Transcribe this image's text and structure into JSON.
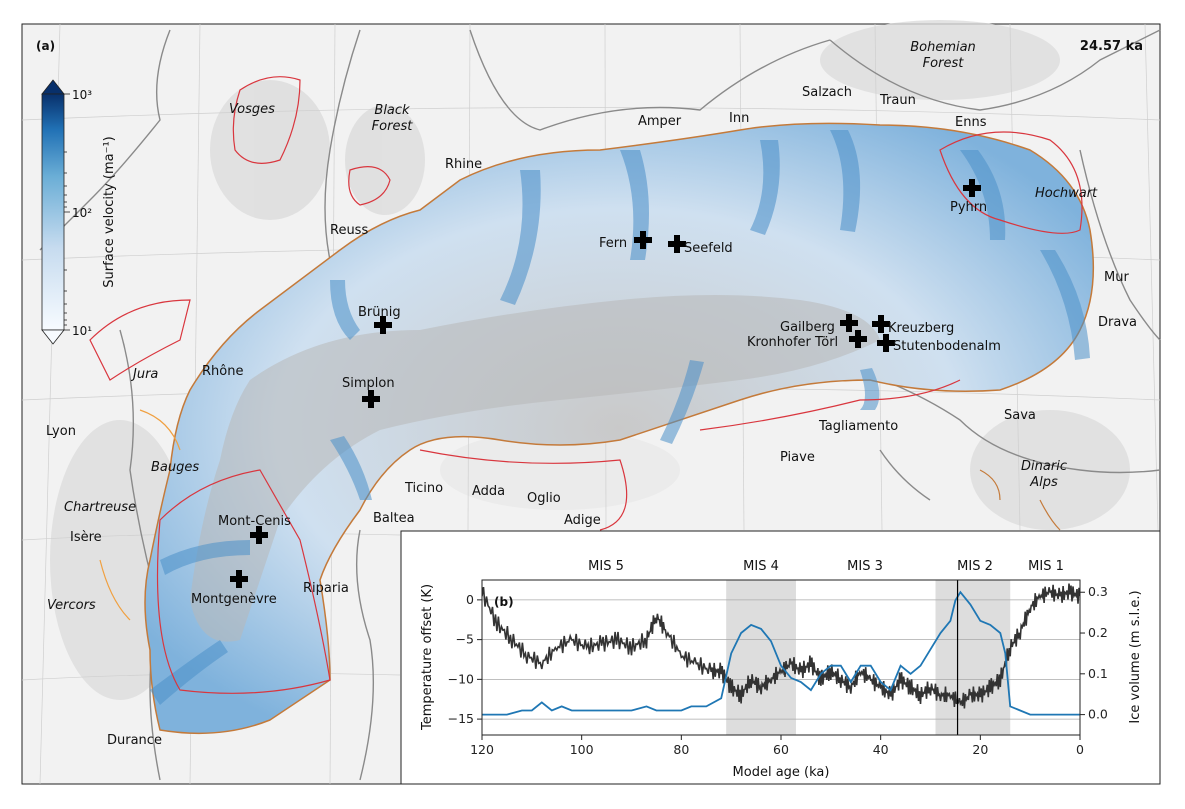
{
  "panel_a": {
    "label": "(a)",
    "time": "24.57 ka",
    "colorbar": {
      "title": "Surface velocity (ma⁻¹)",
      "tick_top": "10³",
      "tick_mid": "10²",
      "tick_bottom": "10¹"
    },
    "labels": {
      "bohemian_forest": "Bohemian Forest",
      "vosges": "Vosges",
      "black_forest": "Black Forest",
      "rhine": "Rhine",
      "amper": "Amper",
      "inn": "Inn",
      "salzach": "Salzach",
      "traun": "Traun",
      "enns": "Enns",
      "hochwart": "Hochwart",
      "pyhrn": "Pyhrn",
      "reuss": "Reuss",
      "fern": "Fern",
      "seefeld": "Seefeld",
      "mur": "Mur",
      "drava": "Drava",
      "brunig": "Brünig",
      "gailberg": "Gailberg",
      "kreuzberg": "Kreuzberg",
      "kronhofer": "Kronhofer Törl",
      "stutenboden": "Stutenbodenalm",
      "jura": "Jura",
      "rhone": "Rhône",
      "simplon": "Simplon",
      "sava": "Sava",
      "lyon": "Lyon",
      "tagliamento": "Tagliamento",
      "bauges": "Bauges",
      "piave": "Piave",
      "dinaric": "Dinaric Alps",
      "ticino": "Ticino",
      "adda": "Adda",
      "oglio": "Oglio",
      "chartreuse": "Chartreuse",
      "adige": "Adige",
      "baltea": "Baltea",
      "mont_cenis": "Mont-Cenis",
      "isere": "Isère",
      "riparia": "Riparia",
      "vercors": "Vercors",
      "montgenevre": "Montgenèvre",
      "durance": "Durance"
    }
  },
  "panel_b": {
    "label": "(b)",
    "mis_labels": [
      "MIS 5",
      "MIS 4",
      "MIS 3",
      "MIS 2",
      "MIS 1"
    ],
    "mis_shaded": [
      [
        71,
        57
      ],
      [
        29,
        14
      ]
    ],
    "xlabel": "Model age (ka)",
    "ylabel_left": "Temperature offset (K)",
    "ylabel_right": "Ice volume (m s.l.e.)",
    "xticks": [
      "120",
      "100",
      "80",
      "60",
      "40",
      "20",
      "0"
    ],
    "yticks_left": [
      "0",
      "−5",
      "−10",
      "−15"
    ],
    "yticks_right": [
      "0.3",
      "0.2",
      "0.1",
      "0.0"
    ],
    "current_time_ka": 24.57,
    "colors": {
      "temperature": "#333333",
      "ice_volume": "#1f77b4",
      "shade": "#dddddd"
    }
  },
  "chart_data": {
    "type": "line",
    "x_direction": "reversed",
    "xlim": [
      120,
      0
    ],
    "ylim_left": [
      -17,
      2.5
    ],
    "ylim_right": [
      -0.05,
      0.33
    ],
    "series": [
      {
        "name": "Temperature offset (K)",
        "axis": "left",
        "x": [
          120,
          117,
          114,
          111,
          108,
          105,
          102,
          99,
          96,
          93,
          90,
          87,
          85,
          83,
          80,
          77,
          74,
          72,
          70,
          68,
          66,
          64,
          62,
          60,
          58,
          56,
          54,
          52,
          50,
          48,
          46,
          44,
          42,
          40,
          38,
          36,
          34,
          32,
          30,
          28,
          26,
          24,
          22,
          20,
          18,
          16,
          14,
          12,
          10,
          8,
          6,
          4,
          2,
          0
        ],
        "values": [
          1,
          -3,
          -5,
          -7,
          -8,
          -6,
          -5,
          -6,
          -5.5,
          -5,
          -6,
          -5,
          -2,
          -4,
          -7,
          -8,
          -9,
          -9,
          -11,
          -12,
          -10,
          -11,
          -10,
          -9,
          -8,
          -9,
          -8,
          -10,
          -9,
          -10,
          -11,
          -9,
          -10,
          -11,
          -12,
          -10,
          -11,
          -12,
          -11,
          -12,
          -12,
          -13,
          -12,
          -12,
          -11,
          -10,
          -6,
          -4,
          -1,
          0.5,
          1,
          0.5,
          1,
          0.5
        ]
      },
      {
        "name": "Ice volume (m s.l.e.)",
        "axis": "right",
        "x": [
          120,
          115,
          112,
          110,
          108,
          106,
          104,
          102,
          100,
          95,
          90,
          87,
          85,
          82,
          80,
          78,
          75,
          72,
          70,
          68,
          66,
          64,
          62,
          60,
          58,
          56,
          54,
          52,
          50,
          48,
          46,
          44,
          42,
          40,
          38,
          36,
          34,
          32,
          30,
          28,
          26,
          25,
          24,
          22,
          20,
          18,
          16,
          15,
          14,
          12,
          10,
          5,
          0
        ],
        "values": [
          0.0,
          0.0,
          0.01,
          0.01,
          0.03,
          0.01,
          0.02,
          0.01,
          0.01,
          0.01,
          0.01,
          0.02,
          0.01,
          0.01,
          0.01,
          0.02,
          0.02,
          0.04,
          0.15,
          0.2,
          0.22,
          0.21,
          0.18,
          0.12,
          0.09,
          0.08,
          0.06,
          0.1,
          0.12,
          0.12,
          0.08,
          0.12,
          0.12,
          0.08,
          0.06,
          0.12,
          0.1,
          0.12,
          0.16,
          0.2,
          0.23,
          0.28,
          0.3,
          0.27,
          0.23,
          0.22,
          0.2,
          0.15,
          0.02,
          0.01,
          0.0,
          0.0,
          0.0
        ]
      }
    ]
  }
}
